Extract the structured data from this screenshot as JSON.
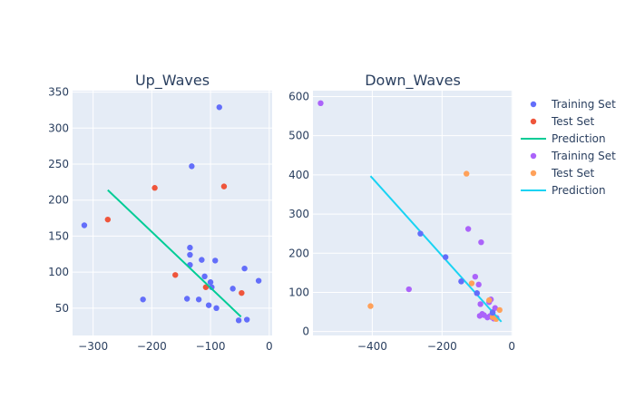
{
  "chart_data": [
    {
      "type": "scatter",
      "title": "Up_Waves",
      "xlabel": "",
      "ylabel": "",
      "xlim": [
        -335,
        5
      ],
      "ylim": [
        12,
        352
      ],
      "xticks": [
        -300,
        -200,
        -100,
        0
      ],
      "xtick_labels": [
        "−300",
        "−200",
        "−100",
        "0"
      ],
      "yticks": [
        50,
        100,
        150,
        200,
        250,
        300,
        350
      ],
      "ytick_labels": [
        "50",
        "100",
        "150",
        "200",
        "250",
        "300",
        "350"
      ],
      "grid": true,
      "series": [
        {
          "name": "Training Set",
          "kind": "markers",
          "color": "#636efa",
          "points": [
            [
              -315,
              165
            ],
            [
              -215,
              62
            ],
            [
              -140,
              63
            ],
            [
              -135,
              134
            ],
            [
              -135,
              124
            ],
            [
              -135,
              110
            ],
            [
              -132,
              247
            ],
            [
              -120,
              62
            ],
            [
              -115,
              117
            ],
            [
              -110,
              94
            ],
            [
              -103,
              54
            ],
            [
              -100,
              86
            ],
            [
              -98,
              79
            ],
            [
              -92,
              116
            ],
            [
              -90,
              50
            ],
            [
              -85,
              329
            ],
            [
              -62,
              77
            ],
            [
              -52,
              33
            ],
            [
              -42,
              105
            ],
            [
              -38,
              34
            ],
            [
              -18,
              88
            ]
          ]
        },
        {
          "name": "Test Set",
          "kind": "markers",
          "color": "#ef553b",
          "points": [
            [
              -275,
              173
            ],
            [
              -195,
              217
            ],
            [
              -160,
              96
            ],
            [
              -108,
              79
            ],
            [
              -77,
              219
            ],
            [
              -47,
              71
            ]
          ]
        },
        {
          "name": "Prediction",
          "kind": "line",
          "color": "#00cc96",
          "points": [
            [
              -275,
              214
            ],
            [
              -48,
              38
            ]
          ]
        }
      ]
    },
    {
      "type": "scatter",
      "title": "Down_Waves",
      "xlabel": "",
      "ylabel": "",
      "xlim": [
        -570,
        2
      ],
      "ylim": [
        -10,
        615
      ],
      "xticks": [
        -400,
        -200,
        0
      ],
      "xtick_labels": [
        "−400",
        "−200",
        "0"
      ],
      "yticks": [
        0,
        100,
        200,
        300,
        400,
        500,
        600
      ],
      "ytick_labels": [
        "0",
        "100",
        "200",
        "300",
        "400",
        "500",
        "600"
      ],
      "grid": true,
      "series": [
        {
          "name": "Training Set",
          "kind": "markers",
          "color": "#ab63fa",
          "points": [
            [
              -548,
              583
            ],
            [
              -295,
              108
            ],
            [
              -125,
              262
            ],
            [
              -105,
              140
            ],
            [
              -95,
              120
            ],
            [
              -88,
              228
            ],
            [
              -90,
              70
            ],
            [
              -92,
              40
            ],
            [
              -85,
              45
            ],
            [
              -80,
              42
            ],
            [
              -70,
              36
            ],
            [
              -65,
              75
            ],
            [
              -60,
              82
            ],
            [
              -58,
              37
            ],
            [
              -52,
              33
            ],
            [
              -48,
              60
            ],
            [
              -44,
              35
            ],
            [
              -55,
              50
            ],
            [
              -62,
              40
            ],
            [
              -145,
              128
            ],
            [
              -100,
              98
            ]
          ]
        },
        {
          "name": "Test Set",
          "kind": "markers",
          "color": "#ffa15a",
          "points": [
            [
              -405,
              65
            ],
            [
              -130,
              403
            ],
            [
              -115,
              123
            ],
            [
              -65,
              80
            ],
            [
              -55,
              37
            ],
            [
              -45,
              32
            ],
            [
              -35,
              55
            ]
          ]
        },
        {
          "name": "Prediction",
          "kind": "line",
          "color": "#19d3f3",
          "points": [
            [
              -405,
              397
            ],
            [
              -30,
              25
            ]
          ]
        }
      ],
      "extra_markers": [
        {
          "color": "#636efa",
          "points": [
            [
              -262,
              250
            ],
            [
              -190,
              190
            ],
            [
              -100,
              98
            ],
            [
              -145,
              128
            ],
            [
              -55,
              48
            ]
          ]
        }
      ]
    }
  ],
  "legend": {
    "position": "right",
    "items": [
      {
        "label": "Training Set",
        "symbol": "marker",
        "color": "#636efa"
      },
      {
        "label": "Test Set",
        "symbol": "marker",
        "color": "#ef553b"
      },
      {
        "label": "Prediction",
        "symbol": "line",
        "color": "#00cc96"
      },
      {
        "label": "Training Set",
        "symbol": "marker",
        "color": "#ab63fa"
      },
      {
        "label": "Test Set",
        "symbol": "marker",
        "color": "#ffa15a"
      },
      {
        "label": "Prediction",
        "symbol": "line",
        "color": "#19d3f3"
      }
    ]
  },
  "style": {
    "plot_bg": "#e5ecf6",
    "grid_color": "#ffffff",
    "text_color": "#2a3f5f"
  }
}
